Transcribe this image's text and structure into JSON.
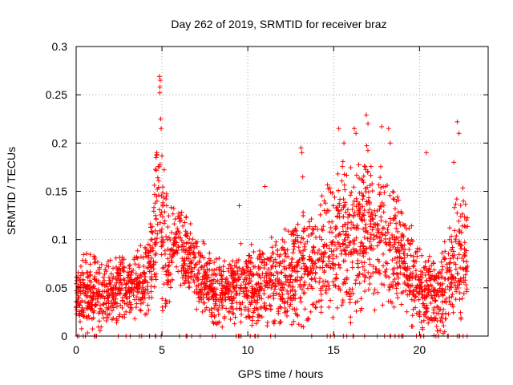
{
  "chart_data": {
    "type": "scatter",
    "title": "Day 262 of 2019, SRMTID for receiver braz",
    "xlabel": "GPS time / hours",
    "ylabel": "SRMTID / TECUs",
    "xlim": [
      0,
      24
    ],
    "ylim": [
      0,
      0.3
    ],
    "xticks": [
      0,
      5,
      10,
      15,
      20
    ],
    "xtick_labels": [
      "0",
      "5",
      "10",
      "15",
      "20"
    ],
    "yticks": [
      0,
      0.05,
      0.1,
      0.15,
      0.2,
      0.25,
      0.3
    ],
    "ytick_labels": [
      "0",
      "0.05",
      "0.1",
      "0.15",
      "0.2",
      "0.25",
      "0.3"
    ],
    "grid": true,
    "marker": "+",
    "color": "#ff0000",
    "series": [
      {
        "name": "SRMTID",
        "envelope_hours": [
          0,
          0.5,
          1,
          1.5,
          2,
          2.5,
          3,
          3.5,
          4,
          4.5,
          4.8,
          5,
          5.3,
          5.6,
          6,
          6.5,
          7,
          7.5,
          8,
          8.5,
          9,
          9.5,
          10,
          10.5,
          11,
          11.5,
          12,
          12.5,
          13,
          13.5,
          14,
          14.5,
          15,
          15.5,
          16,
          16.5,
          17,
          17.5,
          18,
          18.5,
          19,
          19.5,
          20,
          20.5,
          21,
          21.5,
          22,
          22.5,
          22.8
        ],
        "envelope_center": [
          0.04,
          0.045,
          0.045,
          0.04,
          0.045,
          0.05,
          0.05,
          0.055,
          0.06,
          0.08,
          0.13,
          0.12,
          0.08,
          0.09,
          0.1,
          0.08,
          0.07,
          0.06,
          0.045,
          0.045,
          0.05,
          0.055,
          0.055,
          0.05,
          0.055,
          0.06,
          0.06,
          0.065,
          0.07,
          0.07,
          0.08,
          0.085,
          0.09,
          0.1,
          0.1,
          0.11,
          0.115,
          0.1,
          0.1,
          0.09,
          0.08,
          0.06,
          0.05,
          0.045,
          0.04,
          0.05,
          0.07,
          0.09,
          0.08
        ],
        "envelope_spread": [
          0.03,
          0.035,
          0.035,
          0.03,
          0.03,
          0.03,
          0.03,
          0.035,
          0.04,
          0.05,
          0.09,
          0.08,
          0.05,
          0.04,
          0.04,
          0.035,
          0.035,
          0.03,
          0.03,
          0.03,
          0.03,
          0.035,
          0.035,
          0.035,
          0.04,
          0.04,
          0.04,
          0.045,
          0.05,
          0.05,
          0.05,
          0.055,
          0.06,
          0.065,
          0.07,
          0.07,
          0.07,
          0.065,
          0.06,
          0.055,
          0.05,
          0.045,
          0.04,
          0.035,
          0.035,
          0.045,
          0.06,
          0.06,
          0.04
        ],
        "points": [
          [
            4.85,
            0.269
          ],
          [
            4.9,
            0.265
          ],
          [
            4.88,
            0.258
          ],
          [
            4.87,
            0.252
          ],
          [
            4.92,
            0.225
          ],
          [
            4.95,
            0.215
          ],
          [
            4.7,
            0.19
          ],
          [
            4.65,
            0.185
          ],
          [
            15.3,
            0.215
          ],
          [
            15.6,
            0.2
          ],
          [
            16.2,
            0.215
          ],
          [
            16.3,
            0.21
          ],
          [
            16.9,
            0.229
          ],
          [
            17.0,
            0.22
          ],
          [
            17.8,
            0.217
          ],
          [
            18.2,
            0.215
          ],
          [
            18.3,
            0.2
          ],
          [
            13.1,
            0.195
          ],
          [
            13.15,
            0.19
          ],
          [
            20.4,
            0.19
          ],
          [
            22.2,
            0.222
          ],
          [
            22.3,
            0.21
          ],
          [
            22.0,
            0.18
          ],
          [
            9.5,
            0.135
          ],
          [
            11.0,
            0.155
          ],
          [
            13.2,
            0.165
          ],
          [
            20.6,
            0.06
          ],
          [
            21.0,
            0.01
          ]
        ]
      }
    ]
  }
}
